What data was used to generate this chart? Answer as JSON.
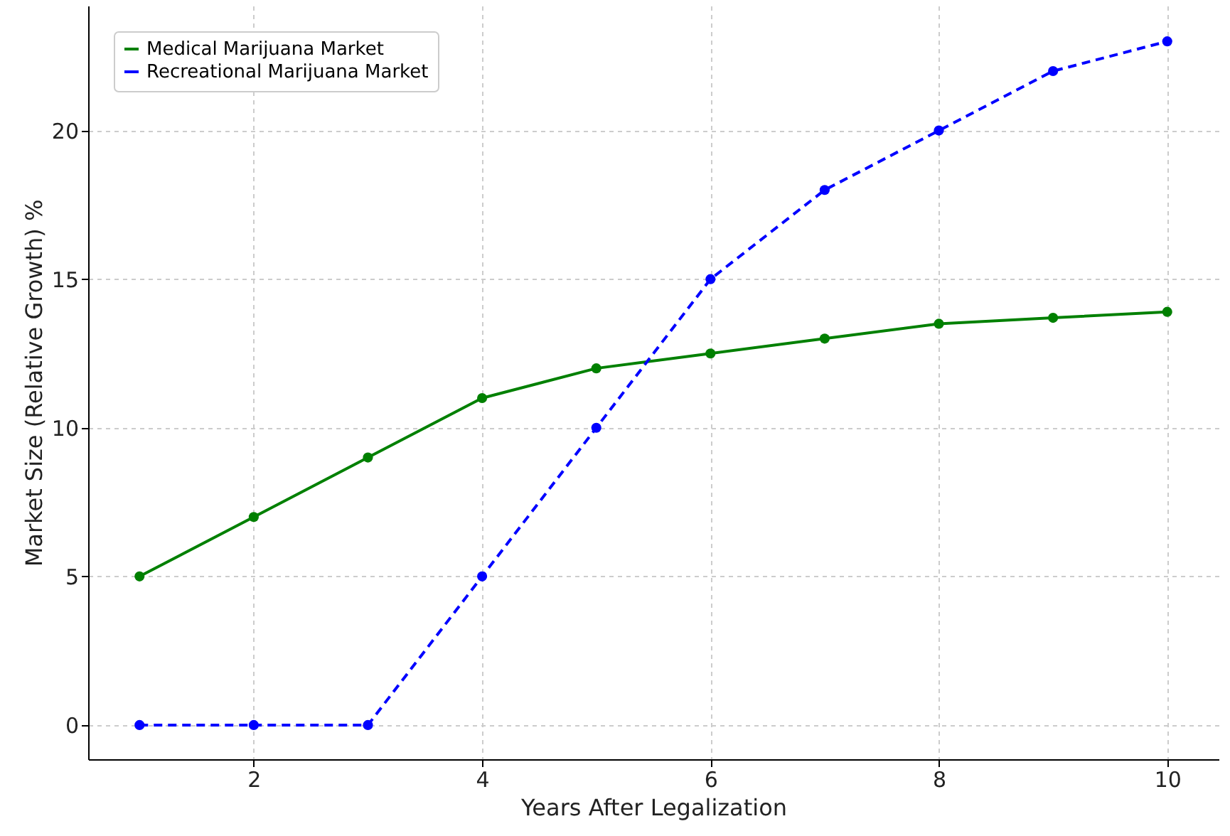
{
  "chart_data": {
    "type": "line",
    "xlabel": "Years After Legalization",
    "ylabel": "Market Size (Relative Growth) %",
    "x": [
      1,
      2,
      3,
      4,
      5,
      6,
      7,
      8,
      9,
      10
    ],
    "series": [
      {
        "name": "Medical Marijuana Market",
        "color": "#008000",
        "line_style": "solid",
        "values": [
          5,
          7,
          9,
          11,
          12,
          12.5,
          13,
          13.5,
          13.7,
          13.9
        ]
      },
      {
        "name": "Recreational Marijuana Market",
        "color": "#0000ff",
        "line_style": "dashed",
        "values": [
          0,
          0,
          0,
          5,
          10,
          15,
          18,
          20,
          22,
          23
        ]
      }
    ],
    "xlim": [
      0.55,
      10.45
    ],
    "xticks": [
      2,
      4,
      6,
      8,
      10
    ],
    "ylim": [
      -1.15,
      24.2
    ],
    "yticks": [
      0,
      5,
      10,
      15,
      20
    ],
    "grid": true,
    "legend": "top left",
    "marker": "circle"
  }
}
